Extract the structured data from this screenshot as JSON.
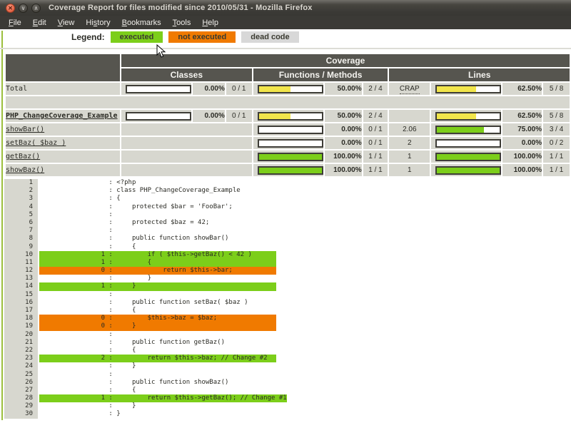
{
  "window": {
    "title": "Coverage Report for files modified since 2010/05/31 - Mozilla Firefox",
    "buttons": [
      {
        "name": "close-button",
        "glyph": "✕"
      },
      {
        "name": "minimize-button",
        "glyph": "∨"
      },
      {
        "name": "maximize-button",
        "glyph": "∧"
      }
    ],
    "menus": [
      {
        "label": "File",
        "accel": 0
      },
      {
        "label": "Edit",
        "accel": 0
      },
      {
        "label": "View",
        "accel": 0
      },
      {
        "label": "History",
        "accel": 2
      },
      {
        "label": "Bookmarks",
        "accel": 0
      },
      {
        "label": "Tools",
        "accel": 0
      },
      {
        "label": "Help",
        "accel": 0
      }
    ]
  },
  "legend": {
    "label": "Legend:",
    "items": [
      {
        "label": "executed",
        "type": "executed"
      },
      {
        "label": "not executed",
        "type": "not-executed"
      },
      {
        "label": "dead code",
        "type": "dead"
      }
    ]
  },
  "colors": {
    "executed_green": "#7CCE1A",
    "not_executed_orange": "#F07A00",
    "partial_yellow": "#F1E54B",
    "dead_gray": "#D8D8D8",
    "header_dark": "#56554F",
    "row_gray": "#D7D7CF"
  },
  "coverage_table": {
    "group_header": "Coverage",
    "columns": [
      "Classes",
      "Functions / Methods",
      "Lines"
    ],
    "rows": [
      {
        "name": "Total",
        "style": "total",
        "link": false,
        "classes": {
          "fill": 0,
          "color": "o",
          "pct": "0.00%",
          "ratio": "0 / 1"
        },
        "functions": {
          "fill": 50,
          "color": "y",
          "pct": "50.00%",
          "ratio": "2 / 4"
        },
        "crap": "CRAP",
        "crap_type": "label",
        "lines": {
          "fill": 62.5,
          "color": "y",
          "pct": "62.50%",
          "ratio": "5 / 8"
        }
      },
      {
        "separator": true
      },
      {
        "name": "PHP_ChangeCoverage_Example",
        "style": "class",
        "link": true,
        "classes": {
          "fill": 0,
          "color": "o",
          "pct": "0.00%",
          "ratio": "0 / 1"
        },
        "functions": {
          "fill": 50,
          "color": "y",
          "pct": "50.00%",
          "ratio": "2 / 4"
        },
        "crap": "",
        "crap_type": "empty",
        "lines": {
          "fill": 62.5,
          "color": "y",
          "pct": "62.50%",
          "ratio": "5 / 8"
        }
      },
      {
        "name": "showBar()",
        "style": "method",
        "link": true,
        "classes": null,
        "functions": {
          "fill": 0,
          "color": "o",
          "pct": "0.00%",
          "ratio": "0 / 1"
        },
        "crap": "2.06",
        "crap_type": "value",
        "lines": {
          "fill": 75,
          "color": "g",
          "pct": "75.00%",
          "ratio": "3 / 4"
        }
      },
      {
        "name": "setBaz( $baz )",
        "style": "method",
        "link": true,
        "classes": null,
        "functions": {
          "fill": 0,
          "color": "o",
          "pct": "0.00%",
          "ratio": "0 / 1"
        },
        "crap": "2",
        "crap_type": "value",
        "lines": {
          "fill": 0,
          "color": "o",
          "pct": "0.00%",
          "ratio": "0 / 2"
        }
      },
      {
        "name": "getBaz()",
        "style": "method",
        "link": true,
        "classes": null,
        "functions": {
          "fill": 100,
          "color": "g",
          "pct": "100.00%",
          "ratio": "1 / 1"
        },
        "crap": "1",
        "crap_type": "value",
        "lines": {
          "fill": 100,
          "color": "g",
          "pct": "100.00%",
          "ratio": "1 / 1"
        }
      },
      {
        "name": "showBaz()",
        "style": "method",
        "link": true,
        "classes": null,
        "functions": {
          "fill": 100,
          "color": "g",
          "pct": "100.00%",
          "ratio": "1 / 1"
        },
        "crap": "1",
        "crap_type": "value",
        "lines": {
          "fill": 100,
          "color": "g",
          "pct": "100.00%",
          "ratio": "1 / 1"
        }
      }
    ]
  },
  "source": {
    "lines": [
      [
        1,
        "",
        "",
        "<?php"
      ],
      [
        2,
        "",
        "",
        "class PHP_ChangeCoverage_Example"
      ],
      [
        3,
        "",
        "",
        "{"
      ],
      [
        4,
        "",
        "",
        "    protected $bar = 'FooBar';"
      ],
      [
        5,
        "",
        "",
        ""
      ],
      [
        6,
        "",
        "",
        "    protected $baz = 42;"
      ],
      [
        7,
        "",
        "",
        ""
      ],
      [
        8,
        "",
        "",
        "    public function showBar()"
      ],
      [
        9,
        "",
        "",
        "    {"
      ],
      [
        10,
        "1",
        "g",
        "        if ( $this->getBaz() < 42 )"
      ],
      [
        11,
        "1",
        "g",
        "        {"
      ],
      [
        12,
        "0",
        "o",
        "            return $this->bar;"
      ],
      [
        13,
        "",
        "",
        "        }"
      ],
      [
        14,
        "1",
        "g",
        "    }"
      ],
      [
        15,
        "",
        "",
        ""
      ],
      [
        16,
        "",
        "",
        "    public function setBaz( $baz )"
      ],
      [
        17,
        "",
        "",
        "    {"
      ],
      [
        18,
        "0",
        "o",
        "        $this->baz = $baz;"
      ],
      [
        19,
        "0",
        "o",
        "    }"
      ],
      [
        20,
        "",
        "",
        ""
      ],
      [
        21,
        "",
        "",
        "    public function getBaz()"
      ],
      [
        22,
        "",
        "",
        "    {"
      ],
      [
        23,
        "2",
        "g",
        "        return $this->baz; // Change #2"
      ],
      [
        24,
        "",
        "",
        "    }"
      ],
      [
        25,
        "",
        "",
        ""
      ],
      [
        26,
        "",
        "",
        "    public function showBaz()"
      ],
      [
        27,
        "",
        "",
        "    {"
      ],
      [
        28,
        "1",
        "g",
        "        return $this->getBaz(); // Change #1"
      ],
      [
        29,
        "",
        "",
        "    }"
      ],
      [
        30,
        "",
        "",
        "}"
      ]
    ]
  }
}
